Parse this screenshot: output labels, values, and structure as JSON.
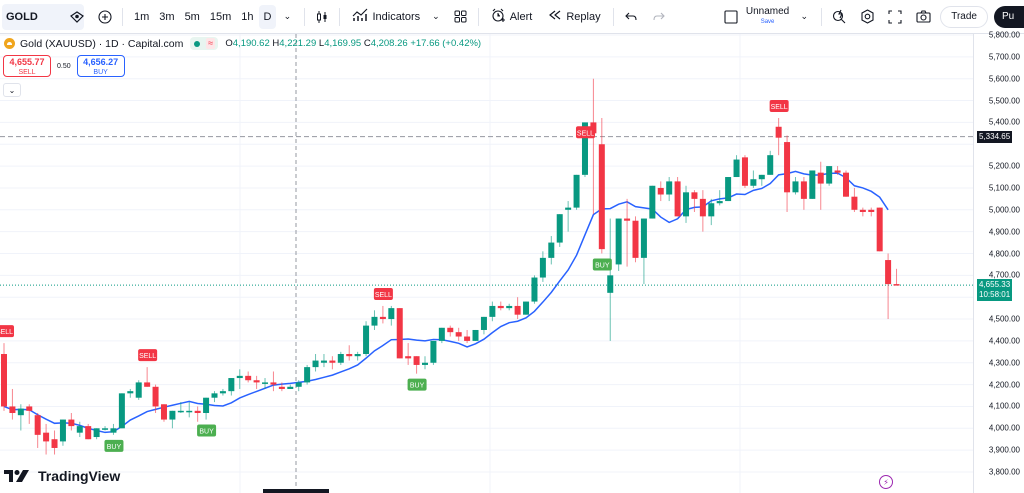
{
  "toolbar": {
    "symbol": "GOLD",
    "timeframes": [
      "1m",
      "3m",
      "5m",
      "15m",
      "1h",
      "D"
    ],
    "active_timeframe": "D",
    "indicators_label": "Indicators",
    "alert_label": "Alert",
    "replay_label": "Replay",
    "layout_name": "Unnamed",
    "layout_save": "Save",
    "trade_label": "Trade",
    "publish_label": "Pu",
    "icons": [
      "watchlist-icon",
      "add-symbol-icon",
      "chevron-down-icon",
      "candle-type-icon",
      "indicators-icon",
      "templates-icon",
      "alert-icon",
      "replay-icon",
      "undo-icon",
      "redo-icon",
      "layout-icon",
      "quick-search-icon",
      "settings-icon",
      "fullscreen-icon",
      "snapshot-icon"
    ]
  },
  "legend": {
    "title": "Gold (XAUUSD) · 1D · Capital.com",
    "o_label": "O",
    "o": "4,190.62",
    "h_label": "H",
    "h": "4,221.29",
    "l_label": "L",
    "l": "4,169.95",
    "c_label": "C",
    "c": "4,208.26",
    "change": "+17.66 (+0.42%)"
  },
  "trade_panel": {
    "sell_price": "4,655.77",
    "sell_label": "SELL",
    "spread": "0.50",
    "buy_price": "4,656.27",
    "buy_label": "BUY"
  },
  "price_axis": {
    "labels": [
      "5,800.00",
      "5,700.00",
      "5,600.00",
      "5,500.00",
      "5,400.00",
      "5,200.00",
      "5,100.00",
      "5,000.00",
      "4,900.00",
      "4,800.00",
      "4,700.00",
      "4,500.00",
      "4,400.00",
      "4,300.00",
      "4,200.00",
      "4,100.00",
      "4,000.00",
      "3,900.00",
      "3,800.00"
    ],
    "crosshair_price": "5,334.65",
    "last_price": "4,655.33",
    "countdown": "10:58:01"
  },
  "branding": {
    "logo_text": "TradingView"
  },
  "colors": {
    "up": "#089981",
    "down": "#f23645",
    "ma": "#2962ff",
    "buy_signal": "#4caf50",
    "sell_signal": "#f23645"
  },
  "chart_data": {
    "type": "candlestick",
    "title": "Gold (XAUUSD) · 1D · Capital.com",
    "ylim": [
      3800,
      5800
    ],
    "y_ticks": [
      3800,
      3900,
      4000,
      4100,
      4200,
      4300,
      4400,
      4500,
      4600,
      4700,
      4800,
      4900,
      5000,
      5100,
      5200,
      5300,
      5400,
      5500,
      5600,
      5700,
      5800
    ],
    "candles": [
      [
        4340,
        4390,
        4080,
        4100
      ],
      [
        4100,
        4180,
        4040,
        4070
      ],
      [
        4060,
        4110,
        3990,
        4090
      ],
      [
        4100,
        4110,
        4020,
        4080
      ],
      [
        4060,
        4070,
        3910,
        3970
      ],
      [
        3980,
        4020,
        3880,
        3940
      ],
      [
        3950,
        3990,
        3880,
        3910
      ],
      [
        3940,
        4040,
        3920,
        4040
      ],
      [
        4040,
        4070,
        3990,
        4010
      ],
      [
        3980,
        4030,
        3960,
        4010
      ],
      [
        4010,
        4020,
        3950,
        3950
      ],
      [
        3960,
        4000,
        3950,
        4000
      ],
      [
        4000,
        4010,
        3990,
        4000
      ],
      [
        3980,
        4020,
        3970,
        4000
      ],
      [
        4000,
        4160,
        4000,
        4160
      ],
      [
        4160,
        4180,
        4140,
        4170
      ],
      [
        4140,
        4220,
        4130,
        4210
      ],
      [
        4210,
        4280,
        4190,
        4190
      ],
      [
        4190,
        4200,
        4070,
        4100
      ],
      [
        4110,
        4100,
        4030,
        4040
      ],
      [
        4040,
        4080,
        4000,
        4080
      ],
      [
        4080,
        4120,
        4070,
        4080
      ],
      [
        4080,
        4120,
        4050,
        4080
      ],
      [
        4080,
        4100,
        4030,
        4070
      ],
      [
        4070,
        4140,
        4040,
        4140
      ],
      [
        4140,
        4170,
        4120,
        4160
      ],
      [
        4160,
        4180,
        4150,
        4170
      ],
      [
        4170,
        4220,
        4150,
        4230
      ],
      [
        4230,
        4270,
        4180,
        4240
      ],
      [
        4240,
        4260,
        4210,
        4220
      ],
      [
        4220,
        4240,
        4180,
        4210
      ],
      [
        4210,
        4230,
        4180,
        4210
      ],
      [
        4210,
        4260,
        4170,
        4200
      ],
      [
        4190,
        4210,
        4170,
        4180
      ],
      [
        4180,
        4200,
        4180,
        4190
      ],
      [
        4190,
        4220,
        4170,
        4210
      ],
      [
        4210,
        4290,
        4200,
        4280
      ],
      [
        4280,
        4340,
        4260,
        4310
      ],
      [
        4300,
        4340,
        4280,
        4310
      ],
      [
        4310,
        4330,
        4270,
        4300
      ],
      [
        4300,
        4350,
        4290,
        4340
      ],
      [
        4340,
        4380,
        4310,
        4330
      ],
      [
        4330,
        4350,
        4310,
        4340
      ],
      [
        4340,
        4490,
        4330,
        4470
      ],
      [
        4470,
        4540,
        4450,
        4510
      ],
      [
        4510,
        4560,
        4480,
        4500
      ],
      [
        4500,
        4560,
        4470,
        4550
      ],
      [
        4550,
        4550,
        4420,
        4320
      ],
      [
        4330,
        4390,
        4290,
        4320
      ],
      [
        4330,
        4320,
        4250,
        4290
      ],
      [
        4290,
        4330,
        4270,
        4300
      ],
      [
        4300,
        4390,
        4290,
        4400
      ],
      [
        4400,
        4460,
        4390,
        4460
      ],
      [
        4460,
        4470,
        4420,
        4440
      ],
      [
        4440,
        4460,
        4400,
        4420
      ],
      [
        4420,
        4450,
        4390,
        4400
      ],
      [
        4400,
        4450,
        4400,
        4450
      ],
      [
        4450,
        4490,
        4430,
        4510
      ],
      [
        4510,
        4580,
        4490,
        4560
      ],
      [
        4560,
        4580,
        4540,
        4550
      ],
      [
        4550,
        4570,
        4540,
        4560
      ],
      [
        4560,
        4600,
        4500,
        4520
      ],
      [
        4520,
        4580,
        4520,
        4580
      ],
      [
        4580,
        4700,
        4570,
        4690
      ],
      [
        4690,
        4810,
        4670,
        4780
      ],
      [
        4780,
        4880,
        4750,
        4850
      ],
      [
        4850,
        4980,
        4830,
        4980
      ],
      [
        5000,
        5040,
        4900,
        5010
      ],
      [
        5010,
        5160,
        5000,
        5160
      ],
      [
        5160,
        5300,
        5150,
        5400
      ],
      [
        5400,
        5600,
        4980,
        5350
      ],
      [
        5300,
        5420,
        4800,
        4820
      ],
      [
        4620,
        4960,
        4400,
        4700
      ],
      [
        4750,
        4960,
        4720,
        4960
      ],
      [
        4960,
        5050,
        4740,
        4950
      ],
      [
        4950,
        4970,
        4760,
        4780
      ],
      [
        4780,
        4960,
        4660,
        4960
      ],
      [
        4960,
        5100,
        5000,
        5110
      ],
      [
        5100,
        5130,
        5040,
        5070
      ],
      [
        5070,
        5150,
        5040,
        5130
      ],
      [
        5130,
        5150,
        4980,
        4970
      ],
      [
        4970,
        5110,
        4940,
        5080
      ],
      [
        5080,
        5090,
        4990,
        5050
      ],
      [
        5050,
        5090,
        4900,
        4970
      ],
      [
        4970,
        5050,
        4930,
        5030
      ],
      [
        5030,
        5090,
        5020,
        5040
      ],
      [
        5040,
        5130,
        5040,
        5150
      ],
      [
        5150,
        5250,
        5180,
        5230
      ],
      [
        5240,
        5250,
        5100,
        5110
      ],
      [
        5110,
        5180,
        5100,
        5140
      ],
      [
        5140,
        5160,
        5110,
        5160
      ],
      [
        5160,
        5270,
        5170,
        5250
      ],
      [
        5380,
        5420,
        5250,
        5330
      ],
      [
        5310,
        5340,
        4990,
        5080
      ],
      [
        5080,
        5150,
        5070,
        5130
      ],
      [
        5130,
        5150,
        5000,
        5050
      ],
      [
        5050,
        5180,
        5050,
        5180
      ],
      [
        5170,
        5220,
        5000,
        5120
      ],
      [
        5120,
        5190,
        5110,
        5200
      ],
      [
        5180,
        5200,
        5160,
        5170
      ],
      [
        5170,
        5180,
        5060,
        5060
      ],
      [
        5060,
        5100,
        4990,
        5000
      ],
      [
        5000,
        5010,
        4970,
        4990
      ],
      [
        5000,
        5010,
        4970,
        4990
      ],
      [
        5010,
        5010,
        4820,
        4810
      ],
      [
        4770,
        4800,
        4500,
        4660
      ],
      [
        4660,
        4730,
        4660,
        4655
      ]
    ],
    "ma_line": "blue moving average following price",
    "signals": [
      {
        "type": "SELL",
        "index": 0
      },
      {
        "type": "BUY",
        "index": 13
      },
      {
        "type": "SELL",
        "index": 17
      },
      {
        "type": "BUY",
        "index": 24
      },
      {
        "type": "SELL",
        "index": 45
      },
      {
        "type": "BUY",
        "index": 49
      },
      {
        "type": "SELL",
        "index": 69
      },
      {
        "type": "BUY",
        "index": 71
      },
      {
        "type": "SELL",
        "index": 92
      }
    ],
    "horizontal_lines": [
      {
        "price": 5334.65,
        "style": "dashed",
        "color": "#9598a1"
      },
      {
        "price": 4655.33,
        "style": "dotted",
        "color": "#089981"
      }
    ]
  }
}
